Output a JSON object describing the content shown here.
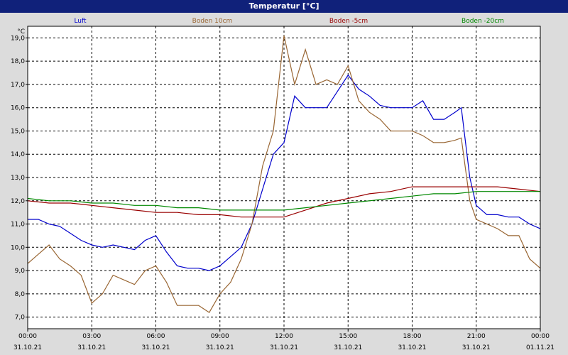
{
  "window": {
    "title": "Temperatur [°C]"
  },
  "colors": {
    "background": "#dcdcdc",
    "plot_bg": "#ffffff",
    "title_bar": "#10217a"
  },
  "chart_data": {
    "type": "line",
    "title": "Temperatur [°C]",
    "ylabel": "°C",
    "ylim": [
      6.5,
      19.5
    ],
    "yticks": [
      "7,0",
      "8,0",
      "9,0",
      "10,0",
      "11,0",
      "12,0",
      "13,0",
      "14,0",
      "15,0",
      "16,0",
      "17,0",
      "18,0",
      "19,0"
    ],
    "ytick_values": [
      7,
      8,
      9,
      10,
      11,
      12,
      13,
      14,
      15,
      16,
      17,
      18,
      19
    ],
    "xlim": [
      0,
      24
    ],
    "xtick_hours": [
      0,
      3,
      6,
      9,
      12,
      15,
      18,
      21,
      24
    ],
    "xtick_times": [
      "00:00",
      "03:00",
      "06:00",
      "09:00",
      "12:00",
      "15:00",
      "18:00",
      "21:00",
      "00:00"
    ],
    "xtick_dates": [
      "31.10.21",
      "31.10.21",
      "31.10.21",
      "31.10.21",
      "31.10.21",
      "31.10.21",
      "31.10.21",
      "31.10.21",
      "01.11.21"
    ],
    "grid": true,
    "legend_position": "top",
    "series": [
      {
        "name": "Luft",
        "color": "#0000cc",
        "x": [
          0,
          0.5,
          1,
          1.5,
          2,
          2.5,
          3,
          3.5,
          4,
          4.5,
          5,
          5.5,
          6,
          6.5,
          7,
          7.5,
          8,
          8.5,
          9,
          9.5,
          10,
          10.5,
          11,
          11.5,
          12,
          12.5,
          13,
          13.5,
          14,
          14.5,
          15,
          15.5,
          16,
          16.5,
          17,
          17.5,
          18,
          18.5,
          19,
          19.5,
          20,
          20.3,
          20.7,
          21,
          21.5,
          22,
          22.5,
          23,
          23.5,
          24
        ],
        "y": [
          11.2,
          11.2,
          11.0,
          10.9,
          10.6,
          10.3,
          10.1,
          10.0,
          10.1,
          10.0,
          9.9,
          10.3,
          10.5,
          9.8,
          9.2,
          9.1,
          9.1,
          9.0,
          9.2,
          9.6,
          10.0,
          11.0,
          12.5,
          14.0,
          14.5,
          16.5,
          16.0,
          16.0,
          16.0,
          16.7,
          17.4,
          16.8,
          16.5,
          16.1,
          16.0,
          16.0,
          16.0,
          16.3,
          15.5,
          15.5,
          15.8,
          16.0,
          13.0,
          11.8,
          11.4,
          11.4,
          11.3,
          11.3,
          11.0,
          10.8
        ]
      },
      {
        "name": "Boden 10cm",
        "color": "#996633",
        "x": [
          0,
          0.5,
          1,
          1.5,
          2,
          2.5,
          3,
          3.5,
          4,
          4.5,
          5,
          5.5,
          6,
          6.5,
          7,
          7.5,
          8,
          8.5,
          9,
          9.5,
          10,
          10.5,
          11,
          11.5,
          12,
          12.5,
          13,
          13.5,
          14,
          14.5,
          15,
          15.5,
          16,
          16.5,
          17,
          17.5,
          18,
          18.5,
          19,
          19.5,
          20,
          20.3,
          20.7,
          21,
          21.5,
          22,
          22.5,
          23,
          23.5,
          24
        ],
        "y": [
          9.3,
          9.7,
          10.1,
          9.5,
          9.2,
          8.8,
          7.6,
          8.0,
          8.8,
          8.6,
          8.4,
          9.0,
          9.2,
          8.5,
          7.5,
          7.5,
          7.5,
          7.2,
          8.0,
          8.5,
          9.5,
          11.0,
          13.5,
          15.0,
          19.1,
          17.0,
          18.5,
          17.0,
          17.2,
          17.0,
          17.8,
          16.3,
          15.8,
          15.5,
          15.0,
          15.0,
          15.0,
          14.8,
          14.5,
          14.5,
          14.6,
          14.7,
          12.0,
          11.2,
          11.0,
          10.8,
          10.5,
          10.5,
          9.5,
          9.1
        ]
      },
      {
        "name": "Boden -5cm",
        "color": "#990000",
        "x": [
          0,
          1,
          2,
          3,
          4,
          5,
          6,
          7,
          8,
          9,
          10,
          11,
          12,
          13,
          14,
          15,
          16,
          17,
          18,
          19,
          20,
          21,
          22,
          23,
          24
        ],
        "y": [
          12.0,
          11.9,
          11.9,
          11.8,
          11.7,
          11.6,
          11.5,
          11.5,
          11.4,
          11.4,
          11.3,
          11.3,
          11.3,
          11.6,
          11.9,
          12.1,
          12.3,
          12.4,
          12.6,
          12.6,
          12.6,
          12.6,
          12.6,
          12.5,
          12.4
        ]
      },
      {
        "name": "Boden -20cm",
        "color": "#008800",
        "x": [
          0,
          1,
          2,
          3,
          4,
          5,
          6,
          7,
          8,
          9,
          10,
          11,
          12,
          13,
          14,
          15,
          16,
          17,
          18,
          19,
          20,
          21,
          22,
          23,
          24
        ],
        "y": [
          12.1,
          12.0,
          12.0,
          11.9,
          11.9,
          11.8,
          11.8,
          11.7,
          11.7,
          11.6,
          11.6,
          11.6,
          11.6,
          11.7,
          11.8,
          11.9,
          12.0,
          12.1,
          12.2,
          12.3,
          12.3,
          12.4,
          12.4,
          12.4,
          12.4
        ]
      }
    ]
  }
}
